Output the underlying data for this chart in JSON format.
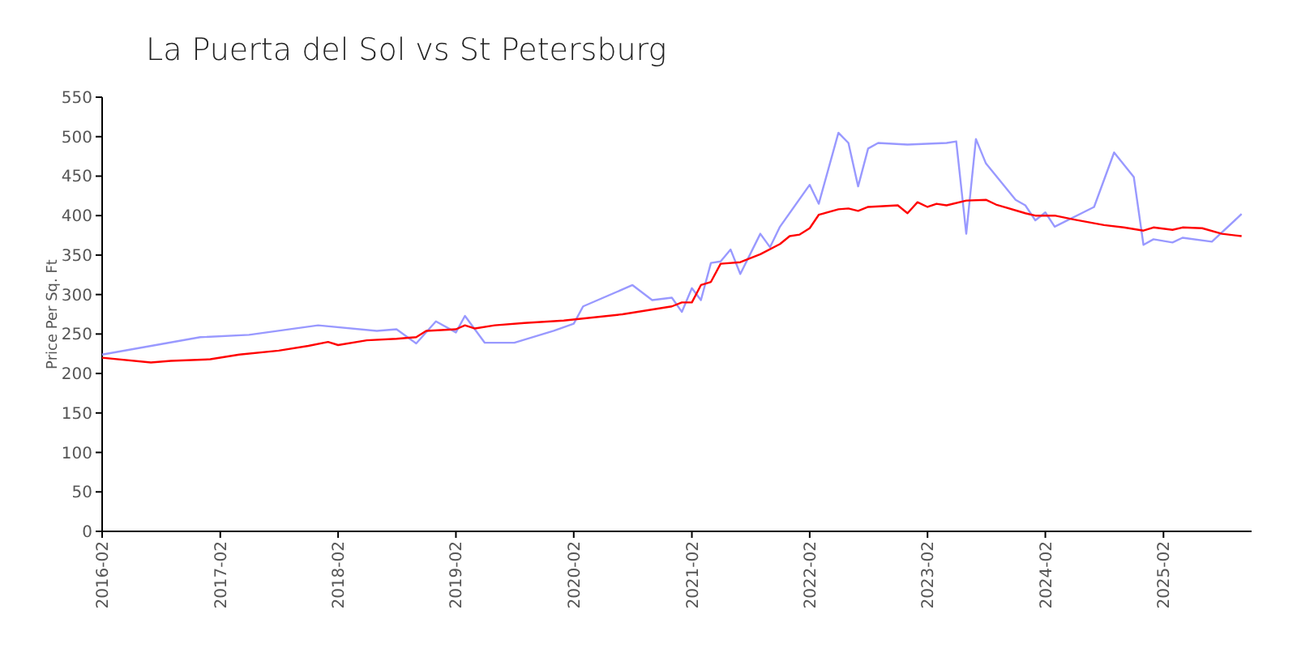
{
  "chart_data": {
    "type": "line",
    "title": "La Puerta del Sol vs St Petersburg",
    "ylabel": "Price Per Sq. Ft",
    "xlim": [
      "2016-02",
      "2025-11"
    ],
    "xticks": [
      {
        "value": "2016-02",
        "label": "2016-02"
      },
      {
        "value": "2017-02",
        "label": "2017-02"
      },
      {
        "value": "2018-02",
        "label": "2018-02"
      },
      {
        "value": "2019-02",
        "label": "2019-02"
      },
      {
        "value": "2020-02",
        "label": "2020-02"
      },
      {
        "value": "2021-02",
        "label": "2021-02"
      },
      {
        "value": "2022-02",
        "label": "2022-02"
      },
      {
        "value": "2023-02",
        "label": "2023-02"
      },
      {
        "value": "2024-02",
        "label": "2024-02"
      },
      {
        "value": "2025-02",
        "label": "2025-02"
      }
    ],
    "ylim": [
      0,
      550
    ],
    "yticks": [
      0,
      50,
      100,
      150,
      200,
      250,
      300,
      350,
      400,
      450,
      500,
      550
    ],
    "grid": false,
    "marker": "none",
    "line_style": "solid",
    "series": [
      {
        "color": "#9999ff",
        "x": [
          "2016-02",
          "2016-12",
          "2017-05",
          "2017-12",
          "2018-06",
          "2018-08",
          "2018-10",
          "2018-12",
          "2019-02",
          "2019-03",
          "2019-05",
          "2019-08",
          "2019-12",
          "2020-02",
          "2020-03",
          "2020-08",
          "2020-10",
          "2020-12",
          "2021-01",
          "2021-02",
          "2021-03",
          "2021-04",
          "2021-05",
          "2021-06",
          "2021-07",
          "2021-09",
          "2021-10",
          "2021-11",
          "2022-02",
          "2022-03",
          "2022-05",
          "2022-06",
          "2022-07",
          "2022-08",
          "2022-09",
          "2022-12",
          "2023-04",
          "2023-05",
          "2023-06",
          "2023-07",
          "2023-08",
          "2023-11",
          "2023-12",
          "2024-01",
          "2024-02",
          "2024-03",
          "2024-07",
          "2024-09",
          "2024-11",
          "2024-12",
          "2025-01",
          "2025-03",
          "2025-04",
          "2025-07",
          "2025-10"
        ],
        "values": [
          224,
          246,
          249,
          261,
          254,
          256,
          238,
          266,
          252,
          273,
          239,
          239,
          254,
          263,
          285,
          312,
          293,
          296,
          278,
          308,
          293,
          340,
          342,
          357,
          326,
          377,
          360,
          386,
          439,
          415,
          505,
          492,
          437,
          485,
          492,
          490,
          492,
          494,
          377,
          497,
          466,
          420,
          413,
          394,
          404,
          386,
          411,
          480,
          449,
          363,
          370,
          366,
          372,
          367,
          402
        ]
      },
      {
        "color": "#ff0000",
        "x": [
          "2016-02",
          "2016-07",
          "2016-09",
          "2017-01",
          "2017-04",
          "2017-08",
          "2017-11",
          "2018-01",
          "2018-02",
          "2018-05",
          "2018-08",
          "2018-10",
          "2018-11",
          "2019-02",
          "2019-03",
          "2019-04",
          "2019-06",
          "2019-09",
          "2020-01",
          "2020-07",
          "2020-12",
          "2021-01",
          "2021-02",
          "2021-03",
          "2021-04",
          "2021-05",
          "2021-07",
          "2021-09",
          "2021-11",
          "2021-12",
          "2022-01",
          "2022-02",
          "2022-03",
          "2022-05",
          "2022-06",
          "2022-07",
          "2022-08",
          "2022-11",
          "2022-12",
          "2023-01",
          "2023-02",
          "2023-03",
          "2023-04",
          "2023-06",
          "2023-08",
          "2023-09",
          "2023-12",
          "2024-01",
          "2024-03",
          "2024-05",
          "2024-08",
          "2024-10",
          "2024-12",
          "2025-01",
          "2025-03",
          "2025-04",
          "2025-06",
          "2025-08",
          "2025-10"
        ],
        "values": [
          220,
          214,
          216,
          218,
          224,
          229,
          235,
          240,
          236,
          242,
          244,
          246,
          254,
          256,
          261,
          257,
          261,
          264,
          267,
          275,
          285,
          290,
          290,
          312,
          316,
          339,
          341,
          351,
          364,
          374,
          376,
          384,
          401,
          408,
          409,
          406,
          411,
          413,
          403,
          417,
          411,
          415,
          413,
          419,
          420,
          414,
          403,
          400,
          400,
          395,
          388,
          385,
          381,
          385,
          382,
          385,
          384,
          377,
          374
        ]
      }
    ]
  }
}
